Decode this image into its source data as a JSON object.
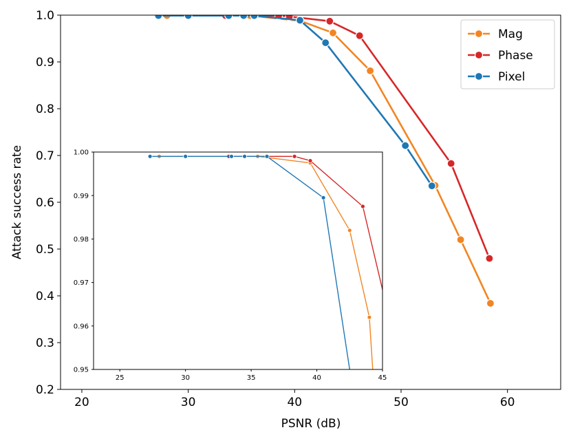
{
  "colors": {
    "Mag": "#f28522",
    "Phase": "#d62728",
    "Pixel": "#1f77b4"
  },
  "legend": {
    "placement": "top-right",
    "items": [
      "Mag",
      "Phase",
      "Pixel"
    ]
  },
  "chart_data": [
    {
      "type": "line",
      "role": "main",
      "xlabel": "PSNR (dB)",
      "ylabel": "Attack success rate",
      "xlim": [
        18,
        65
      ],
      "ylim": [
        0.2,
        1.0
      ],
      "xticks": [
        20,
        30,
        40,
        50,
        60
      ],
      "yticks": [
        0.2,
        0.3,
        0.4,
        0.5,
        0.6,
        0.7,
        0.8,
        0.9,
        1.0
      ],
      "xtick_labels": [
        "20",
        "30",
        "40",
        "50",
        "60"
      ],
      "ytick_labels": [
        "0.2",
        "0.3",
        "0.4",
        "0.5",
        "0.6",
        "0.7",
        "0.8",
        "0.9",
        "1.0"
      ],
      "grid": false,
      "series": [
        {
          "name": "Mag",
          "x": [
            28.0,
            35.8,
            40.5,
            43.6,
            47.1,
            53.2,
            55.6,
            58.4
          ],
          "y": [
            0.999,
            0.999,
            0.988,
            0.962,
            0.881,
            0.636,
            0.52,
            0.384
          ]
        },
        {
          "name": "Phase",
          "x": [
            33.5,
            38.5,
            39.5,
            43.3,
            46.1,
            54.7,
            58.3
          ],
          "y": [
            0.999,
            0.999,
            0.997,
            0.987,
            0.956,
            0.683,
            0.48
          ]
        },
        {
          "name": "Pixel",
          "x": [
            27.2,
            30.0,
            33.8,
            35.2,
            36.2,
            40.5,
            42.9,
            50.4,
            52.9
          ],
          "y": [
            0.999,
            0.999,
            0.999,
            0.999,
            0.999,
            0.989,
            0.941,
            0.721,
            0.635
          ]
        }
      ]
    },
    {
      "type": "line",
      "role": "inset",
      "xlim": [
        23,
        45
      ],
      "ylim": [
        0.95,
        1.0
      ],
      "xticks": [
        25,
        30,
        35,
        40,
        45
      ],
      "yticks": [
        0.95,
        0.96,
        0.97,
        0.98,
        0.99,
        1.0
      ],
      "xtick_labels": [
        "25",
        "30",
        "35",
        "40",
        "45"
      ],
      "ytick_labels": [
        "0.95",
        "0.96",
        "0.97",
        "0.98",
        "0.99",
        "1.00"
      ],
      "grid": false,
      "series": [
        {
          "name": "Mag",
          "x": [
            28.0,
            35.5,
            39.5,
            42.5,
            44.0,
            44.3
          ],
          "y": [
            0.999,
            0.999,
            0.9975,
            0.982,
            0.962,
            0.948
          ]
        },
        {
          "name": "Phase",
          "x": [
            33.3,
            38.3,
            39.5,
            43.5,
            45.5
          ],
          "y": [
            0.999,
            0.999,
            0.998,
            0.9875,
            0.962
          ]
        },
        {
          "name": "Pixel",
          "x": [
            27.3,
            30.0,
            33.5,
            34.5,
            36.2,
            40.5,
            42.6
          ],
          "y": [
            0.999,
            0.999,
            0.999,
            0.999,
            0.999,
            0.9895,
            0.948
          ]
        }
      ]
    }
  ]
}
